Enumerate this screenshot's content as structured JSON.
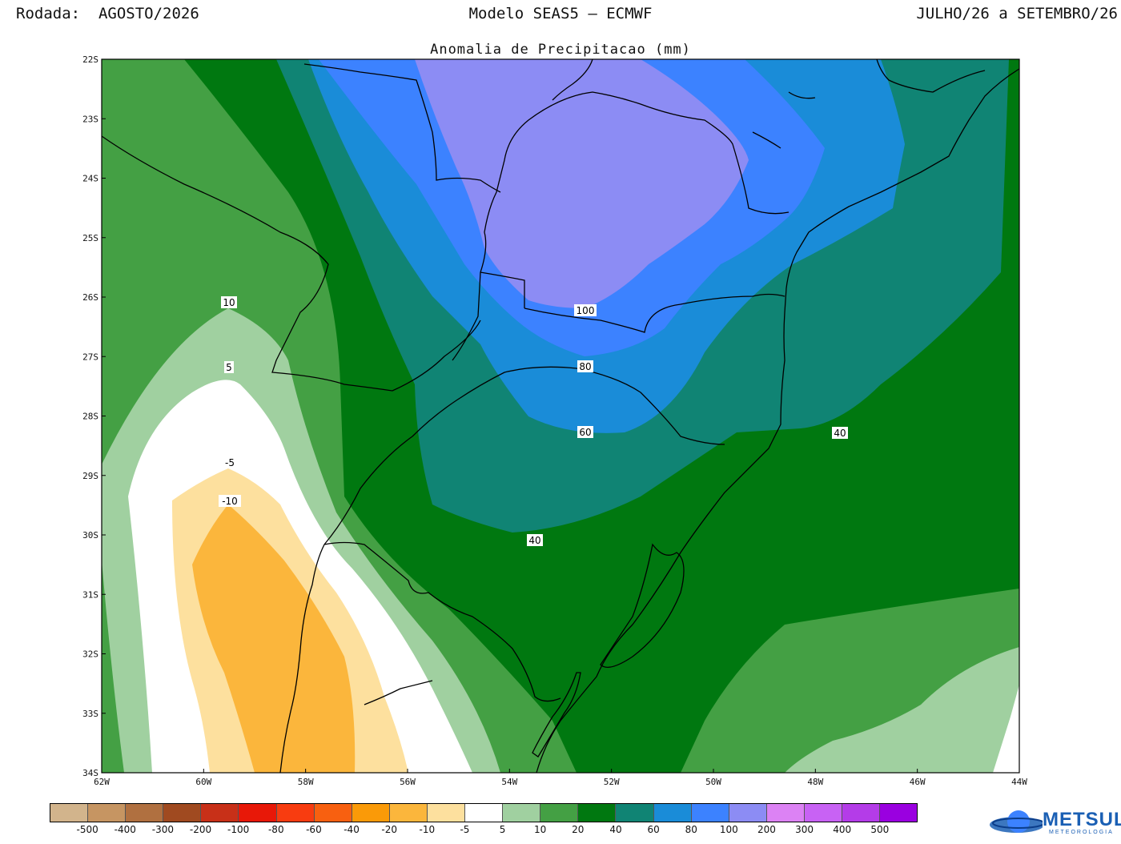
{
  "header": {
    "left": "Rodada:  AGOSTO/2026",
    "center": "Modelo SEAS5 – ECMWF",
    "right": "JULHO/26 a SETEMBRO/26"
  },
  "map": {
    "title": "Anomalia de Precipitacao (mm)",
    "lat_ticks": [
      "22S",
      "23S",
      "24S",
      "25S",
      "26S",
      "27S",
      "28S",
      "29S",
      "30S",
      "31S",
      "32S",
      "33S",
      "34S"
    ],
    "lon_ticks": [
      "62W",
      "60W",
      "58W",
      "56W",
      "54W",
      "52W",
      "50W",
      "48W",
      "46W",
      "44W"
    ],
    "contour_labels": [
      "10",
      "5",
      "-5",
      "-10",
      "100",
      "80",
      "60",
      "40",
      "40"
    ]
  },
  "colorbar": {
    "colors": [
      "#d2b48c",
      "#c69562",
      "#b07040",
      "#a04a20",
      "#c83018",
      "#e81808",
      "#f83c10",
      "#f86010",
      "#fa9a08",
      "#fbb63c",
      "#fde09e",
      "#ffffff",
      "#a0d0a0",
      "#44a044",
      "#007810",
      "#108474",
      "#1a8cd8",
      "#3c82ff",
      "#8c8cf4",
      "#dc82f4",
      "#c862f4",
      "#b43ce8",
      "#9a00e0"
    ],
    "labels": [
      "-500",
      "-400",
      "-300",
      "-200",
      "-100",
      "-80",
      "-60",
      "-40",
      "-20",
      "-10",
      "-5",
      "5",
      "10",
      "20",
      "40",
      "60",
      "80",
      "100",
      "200",
      "300",
      "400",
      "500"
    ]
  },
  "logo": {
    "text": "METSUL",
    "subtext": "METEOROLOGIA"
  },
  "map_colors": {
    "c_neg10": "#fbb63c",
    "c_neg5": "#fde09e",
    "c_white": "#ffffff",
    "c_5": "#a0d0a0",
    "c_10": "#44a044",
    "c_20": "#007810",
    "c_40": "#108474",
    "c_60": "#1a8cd8",
    "c_80": "#3c82ff",
    "c_100": "#8c8cf4"
  }
}
